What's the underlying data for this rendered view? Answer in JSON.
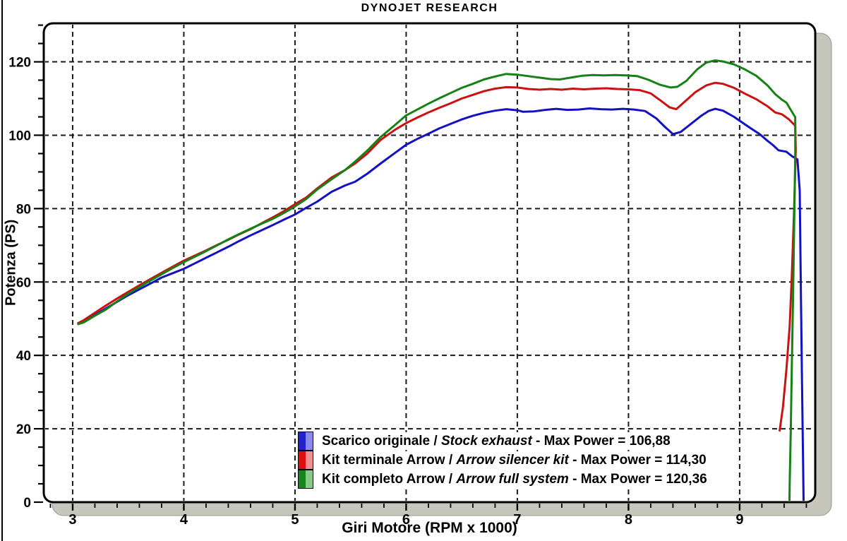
{
  "title": "DYNOJET RESEARCH",
  "chart_data": {
    "type": "line",
    "title": "DYNOJET RESEARCH",
    "xlabel": "Giri Motore (RPM x 1000)",
    "ylabel": "Potenza (PS)",
    "xlim": [
      2.74,
      9.68
    ],
    "ylim": [
      0,
      130.5
    ],
    "x_major_ticks": [
      3,
      4,
      5,
      6,
      7,
      8,
      9
    ],
    "x_minor_tick_step": 0.2,
    "y_major_ticks": [
      0,
      20,
      40,
      60,
      80,
      100,
      120
    ],
    "y_minor_tick_step": 5,
    "grid": "dashed-black-at-major-ticks",
    "grid_color": "#1a1a1a",
    "plot_background": "#ffffff",
    "plot_border_color": "#000000",
    "plot_shadow_color": "#c6c6bc",
    "legend_position": "inside-bottom-center",
    "series": [
      {
        "id": "stock-exhaust",
        "color": "#1212c4",
        "swatch": [
          "#2222cc",
          "#8a8aee"
        ],
        "max_power": "106,88",
        "legend": {
          "prefix": "Scarico originale / ",
          "italic": "Stock exhaust",
          "suffix": " - Max Power = 106,88"
        },
        "points": [
          [
            3.05,
            48.8
          ],
          [
            3.1,
            49.3
          ],
          [
            3.2,
            51.0
          ],
          [
            3.3,
            52.8
          ],
          [
            3.4,
            54.6
          ],
          [
            3.5,
            56.4
          ],
          [
            3.6,
            58.0
          ],
          [
            3.7,
            59.6
          ],
          [
            3.8,
            61.2
          ],
          [
            3.9,
            62.4
          ],
          [
            4.0,
            63.6
          ],
          [
            4.1,
            65.1
          ],
          [
            4.2,
            66.6
          ],
          [
            4.3,
            68.1
          ],
          [
            4.4,
            69.6
          ],
          [
            4.5,
            71.2
          ],
          [
            4.6,
            72.7
          ],
          [
            4.7,
            74.1
          ],
          [
            4.8,
            75.5
          ],
          [
            4.9,
            77.0
          ],
          [
            5.0,
            78.4
          ],
          [
            5.1,
            80.2
          ],
          [
            5.2,
            81.9
          ],
          [
            5.33,
            84.6
          ],
          [
            5.45,
            86.3
          ],
          [
            5.54,
            87.3
          ],
          [
            5.65,
            89.5
          ],
          [
            5.77,
            92.3
          ],
          [
            5.9,
            95.2
          ],
          [
            6.0,
            97.4
          ],
          [
            6.1,
            99.0
          ],
          [
            6.2,
            100.4
          ],
          [
            6.3,
            101.9
          ],
          [
            6.4,
            103.1
          ],
          [
            6.5,
            104.3
          ],
          [
            6.6,
            105.3
          ],
          [
            6.7,
            106.1
          ],
          [
            6.8,
            106.7
          ],
          [
            6.9,
            107.1
          ],
          [
            7.0,
            106.8
          ],
          [
            7.05,
            106.4
          ],
          [
            7.15,
            106.5
          ],
          [
            7.25,
            106.9
          ],
          [
            7.35,
            107.2
          ],
          [
            7.45,
            106.9
          ],
          [
            7.55,
            107.0
          ],
          [
            7.65,
            107.3
          ],
          [
            7.75,
            107.1
          ],
          [
            7.85,
            107.0
          ],
          [
            7.95,
            107.2
          ],
          [
            8.05,
            107.0
          ],
          [
            8.15,
            106.6
          ],
          [
            8.25,
            104.6
          ],
          [
            8.32,
            102.5
          ],
          [
            8.4,
            100.3
          ],
          [
            8.47,
            100.9
          ],
          [
            8.55,
            102.8
          ],
          [
            8.65,
            105.2
          ],
          [
            8.72,
            106.6
          ],
          [
            8.78,
            107.2
          ],
          [
            8.85,
            106.7
          ],
          [
            8.95,
            105.0
          ],
          [
            9.05,
            102.9
          ],
          [
            9.12,
            101.5
          ],
          [
            9.18,
            100.3
          ],
          [
            9.25,
            98.5
          ],
          [
            9.3,
            97.3
          ],
          [
            9.35,
            95.9
          ],
          [
            9.42,
            95.5
          ],
          [
            9.47,
            94.3
          ],
          [
            9.52,
            93.4
          ],
          [
            9.54,
            85
          ],
          [
            9.55,
            60
          ],
          [
            9.56,
            35
          ],
          [
            9.57,
            12
          ],
          [
            9.575,
            0
          ]
        ]
      },
      {
        "id": "arrow-silencer-kit",
        "color": "#cc1111",
        "swatch": [
          "#e01010",
          "#f09090"
        ],
        "max_power": "114,30",
        "legend": {
          "prefix": "Kit terminale Arrow / ",
          "italic": "Arrow silencer kit",
          "suffix": " - Max Power = 114,30"
        },
        "points": [
          [
            3.05,
            48.8
          ],
          [
            3.1,
            49.6
          ],
          [
            3.2,
            51.6
          ],
          [
            3.3,
            53.6
          ],
          [
            3.4,
            55.5
          ],
          [
            3.5,
            57.3
          ],
          [
            3.6,
            59.1
          ],
          [
            3.7,
            60.8
          ],
          [
            3.8,
            62.5
          ],
          [
            3.9,
            64.2
          ],
          [
            4.0,
            65.8
          ],
          [
            4.1,
            67.2
          ],
          [
            4.2,
            68.6
          ],
          [
            4.3,
            70.1
          ],
          [
            4.4,
            71.5
          ],
          [
            4.5,
            73.0
          ],
          [
            4.6,
            74.4
          ],
          [
            4.7,
            76.0
          ],
          [
            4.8,
            77.6
          ],
          [
            4.9,
            79.3
          ],
          [
            5.0,
            81.2
          ],
          [
            5.1,
            83.0
          ],
          [
            5.2,
            85.5
          ],
          [
            5.33,
            88.5
          ],
          [
            5.45,
            90.5
          ],
          [
            5.54,
            92.3
          ],
          [
            5.65,
            95.0
          ],
          [
            5.77,
            98.7
          ],
          [
            5.9,
            101.5
          ],
          [
            6.0,
            103.3
          ],
          [
            6.1,
            104.8
          ],
          [
            6.2,
            106.2
          ],
          [
            6.3,
            107.5
          ],
          [
            6.4,
            108.7
          ],
          [
            6.5,
            110.0
          ],
          [
            6.6,
            111.0
          ],
          [
            6.7,
            112.0
          ],
          [
            6.8,
            112.7
          ],
          [
            6.9,
            113.1
          ],
          [
            7.0,
            113.0
          ],
          [
            7.1,
            112.6
          ],
          [
            7.2,
            112.4
          ],
          [
            7.3,
            112.6
          ],
          [
            7.4,
            112.4
          ],
          [
            7.5,
            112.7
          ],
          [
            7.6,
            112.5
          ],
          [
            7.7,
            112.7
          ],
          [
            7.8,
            112.8
          ],
          [
            7.9,
            112.6
          ],
          [
            8.0,
            112.5
          ],
          [
            8.1,
            112.3
          ],
          [
            8.2,
            111.4
          ],
          [
            8.3,
            109.2
          ],
          [
            8.37,
            107.6
          ],
          [
            8.43,
            107.1
          ],
          [
            8.5,
            109.0
          ],
          [
            8.6,
            111.7
          ],
          [
            8.7,
            113.6
          ],
          [
            8.78,
            114.3
          ],
          [
            8.85,
            114.0
          ],
          [
            8.95,
            112.9
          ],
          [
            9.05,
            111.3
          ],
          [
            9.15,
            109.8
          ],
          [
            9.25,
            107.9
          ],
          [
            9.32,
            106.2
          ],
          [
            9.38,
            105.7
          ],
          [
            9.44,
            104.4
          ],
          [
            9.5,
            102.6
          ],
          [
            9.505,
            96
          ],
          [
            9.49,
            80
          ],
          [
            9.47,
            62
          ],
          [
            9.45,
            48
          ],
          [
            9.42,
            36
          ],
          [
            9.39,
            26
          ],
          [
            9.36,
            19.5
          ]
        ]
      },
      {
        "id": "arrow-full-system",
        "color": "#168216",
        "swatch": [
          "#18841c",
          "#8cc88c"
        ],
        "max_power": "120,36",
        "legend": {
          "prefix": "Kit completo Arrow / ",
          "italic": "Arrow full system",
          "suffix": " - Max Power = 120,36"
        },
        "points": [
          [
            3.05,
            48.5
          ],
          [
            3.1,
            49.0
          ],
          [
            3.2,
            50.8
          ],
          [
            3.3,
            52.5
          ],
          [
            3.4,
            54.7
          ],
          [
            3.5,
            56.8
          ],
          [
            3.6,
            58.6
          ],
          [
            3.7,
            60.4
          ],
          [
            3.8,
            62.1
          ],
          [
            3.9,
            63.8
          ],
          [
            4.0,
            65.4
          ],
          [
            4.1,
            66.9
          ],
          [
            4.2,
            68.4
          ],
          [
            4.3,
            70.0
          ],
          [
            4.4,
            71.6
          ],
          [
            4.5,
            73.1
          ],
          [
            4.6,
            74.5
          ],
          [
            4.7,
            75.9
          ],
          [
            4.8,
            77.2
          ],
          [
            4.9,
            78.8
          ],
          [
            5.0,
            80.6
          ],
          [
            5.1,
            82.6
          ],
          [
            5.2,
            85.2
          ],
          [
            5.33,
            88.0
          ],
          [
            5.45,
            90.5
          ],
          [
            5.54,
            92.8
          ],
          [
            5.65,
            95.8
          ],
          [
            5.77,
            99.5
          ],
          [
            5.9,
            102.8
          ],
          [
            6.0,
            105.4
          ],
          [
            6.1,
            107.0
          ],
          [
            6.2,
            108.6
          ],
          [
            6.3,
            110.1
          ],
          [
            6.4,
            111.5
          ],
          [
            6.5,
            112.9
          ],
          [
            6.6,
            114.0
          ],
          [
            6.7,
            115.2
          ],
          [
            6.8,
            116.0
          ],
          [
            6.9,
            116.7
          ],
          [
            7.0,
            116.5
          ],
          [
            7.1,
            116.1
          ],
          [
            7.2,
            115.7
          ],
          [
            7.3,
            115.3
          ],
          [
            7.38,
            115.2
          ],
          [
            7.48,
            115.7
          ],
          [
            7.58,
            116.2
          ],
          [
            7.68,
            116.4
          ],
          [
            7.78,
            116.3
          ],
          [
            7.88,
            116.4
          ],
          [
            7.98,
            116.3
          ],
          [
            8.08,
            116.1
          ],
          [
            8.18,
            115.1
          ],
          [
            8.28,
            113.8
          ],
          [
            8.38,
            113.0
          ],
          [
            8.44,
            113.2
          ],
          [
            8.52,
            114.8
          ],
          [
            8.62,
            118.0
          ],
          [
            8.7,
            119.8
          ],
          [
            8.78,
            120.4
          ],
          [
            8.85,
            120.1
          ],
          [
            8.95,
            119.3
          ],
          [
            9.05,
            117.9
          ],
          [
            9.15,
            116.2
          ],
          [
            9.25,
            113.6
          ],
          [
            9.32,
            111.2
          ],
          [
            9.38,
            109.7
          ],
          [
            9.42,
            108.9
          ],
          [
            9.46,
            106.9
          ],
          [
            9.5,
            104.9
          ],
          [
            9.5,
            95
          ],
          [
            9.49,
            75
          ],
          [
            9.48,
            55
          ],
          [
            9.47,
            38
          ],
          [
            9.46,
            20
          ],
          [
            9.45,
            5
          ],
          [
            9.448,
            0
          ]
        ]
      }
    ]
  }
}
